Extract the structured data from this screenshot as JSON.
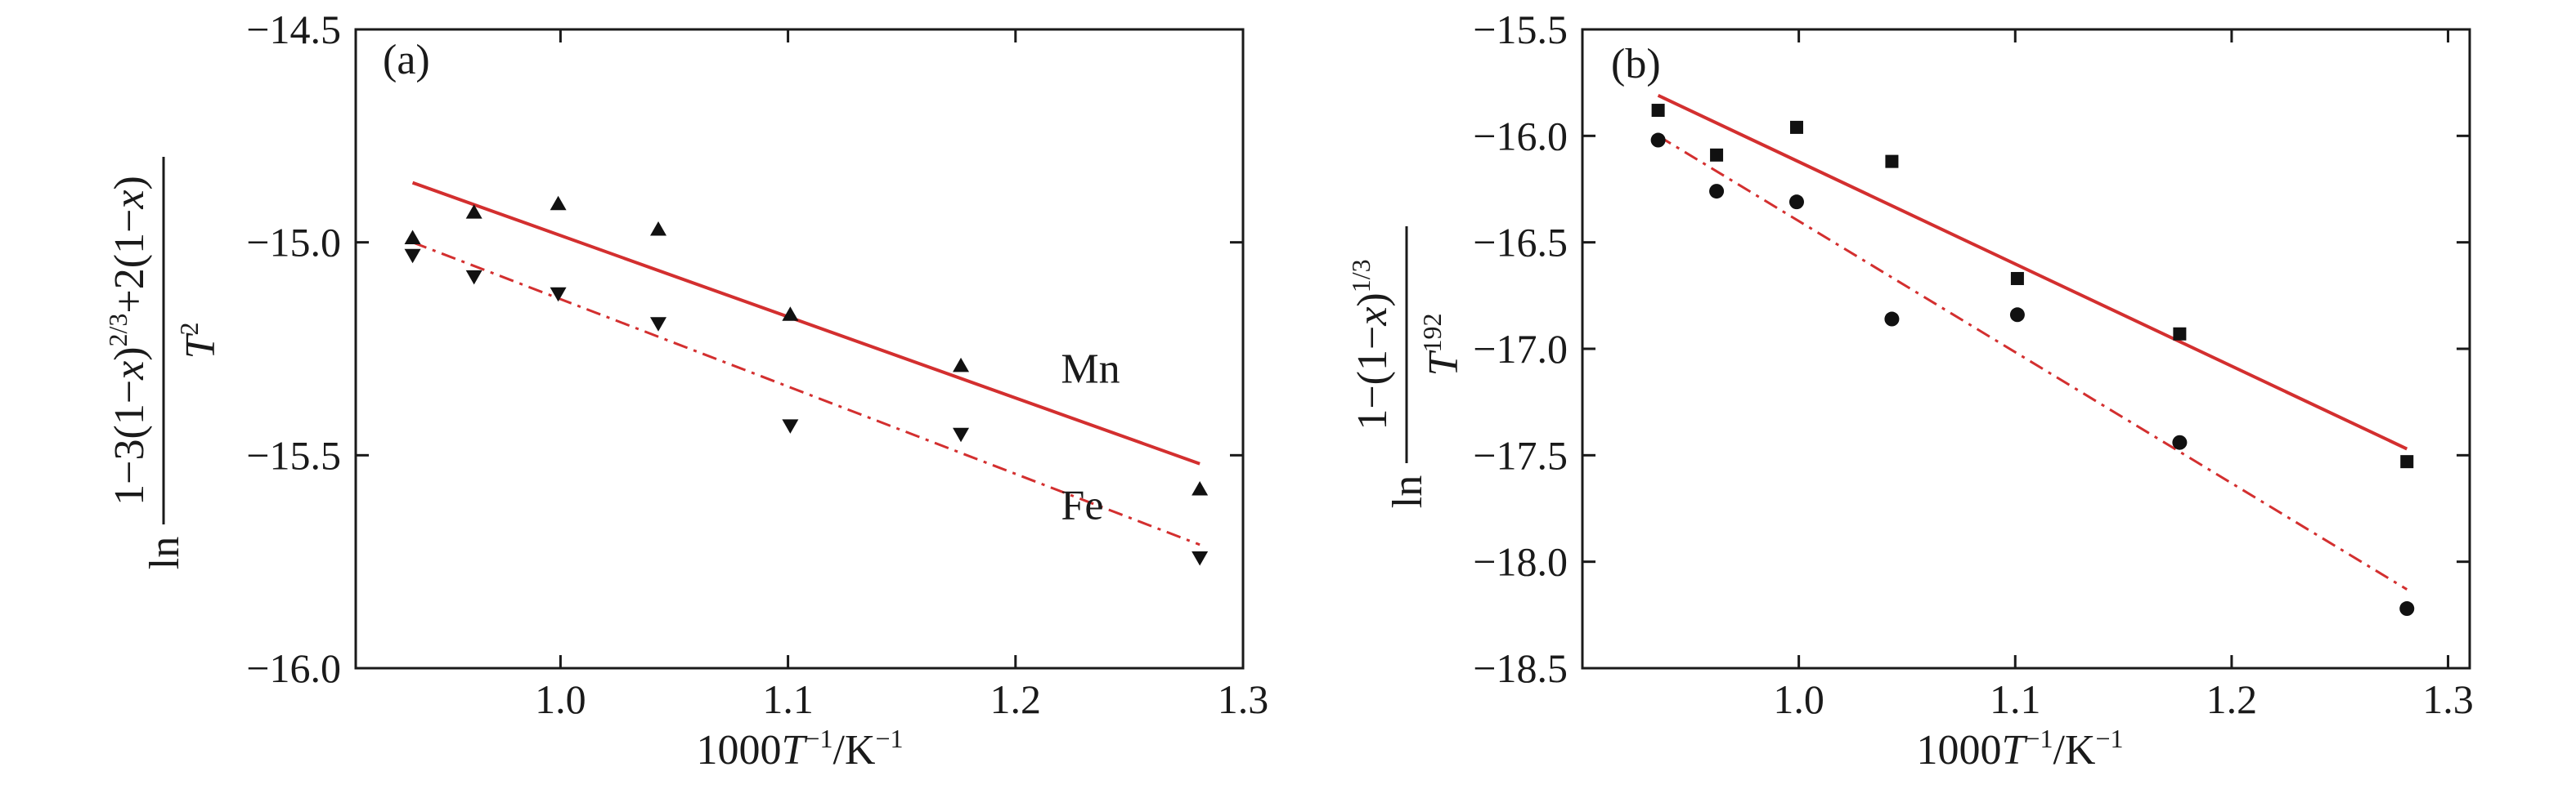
{
  "chart_data": [
    {
      "type": "scatter",
      "panel_label": "(a)",
      "ylabel": {
        "pre": "ln",
        "num": "1−3(1−",
        "num_x1": "x",
        "num_mid": ")",
        "num_sup": "2/3",
        "num_post": "+2(1−",
        "num_x2": "x",
        "num_end": ")",
        "den": "T",
        "den_sup": "2"
      },
      "xlabel": {
        "pre": "1000",
        "t": "T",
        "sup1": "−1",
        "post": "/K",
        "sup2": "−1"
      },
      "xlim": [
        0.91,
        1.3
      ],
      "ylim": [
        -16.0,
        -14.5
      ],
      "xticks": [
        1.0,
        1.1,
        1.2,
        1.3
      ],
      "xtick_labels": [
        "1.0",
        "1.1",
        "1.2",
        "1.3"
      ],
      "yticks": [
        -14.5,
        -15.0,
        -15.5,
        -16.0
      ],
      "ytick_labels": [
        "−14.5",
        "−15.0",
        "−15.5",
        "−16.0"
      ],
      "series": [
        {
          "name": "Mn",
          "marker": "triangle-up",
          "line_style": "solid",
          "x": [
            0.935,
            0.962,
            0.999,
            1.043,
            1.101,
            1.176,
            1.281
          ],
          "y": [
            -14.99,
            -14.93,
            -14.91,
            -14.97,
            -15.17,
            -15.29,
            -15.58
          ],
          "fit": {
            "x": [
              0.935,
              1.281
            ],
            "y": [
              -14.86,
              -15.52
            ]
          }
        },
        {
          "name": "Fe",
          "marker": "triangle-down",
          "line_style": "dashdot",
          "x": [
            0.935,
            0.962,
            0.999,
            1.043,
            1.101,
            1.176,
            1.281
          ],
          "y": [
            -15.03,
            -15.08,
            -15.12,
            -15.19,
            -15.43,
            -15.45,
            -15.74
          ],
          "fit": {
            "x": [
              0.935,
              1.281
            ],
            "y": [
              -15.0,
              -15.71
            ]
          }
        }
      ],
      "series_labels": [
        {
          "text": "Mn",
          "x": 1.22,
          "y": -15.33
        },
        {
          "text": "Fe",
          "x": 1.22,
          "y": -15.65
        }
      ],
      "line_color": "#d32f2f",
      "grid": false
    },
    {
      "type": "scatter",
      "panel_label": "(b)",
      "ylabel": {
        "pre": "ln",
        "num": "1−(1−",
        "num_x": "x",
        "num_end": ")",
        "num_sup": "1/3",
        "den": "T",
        "den_sup": "192"
      },
      "xlabel": {
        "pre": "1000",
        "t": "T",
        "sup1": "−1",
        "post": "/K",
        "sup2": "−1"
      },
      "xlim": [
        0.9,
        1.31
      ],
      "ylim": [
        -18.5,
        -15.5
      ],
      "xticks": [
        1.0,
        1.1,
        1.2,
        1.3
      ],
      "xtick_labels": [
        "1.0",
        "1.1",
        "1.2",
        "1.3"
      ],
      "yticks": [
        -15.5,
        -16.0,
        -16.5,
        -17.0,
        -17.5,
        -18.0,
        -18.5
      ],
      "ytick_labels": [
        "−15.5",
        "−16.0",
        "−16.5",
        "−17.0",
        "−17.5",
        "−18.0",
        "−18.5"
      ],
      "series": [
        {
          "name": "",
          "marker": "square",
          "line_style": "solid",
          "x": [
            0.935,
            0.962,
            0.999,
            1.043,
            1.101,
            1.176,
            1.281
          ],
          "y": [
            -15.88,
            -16.09,
            -15.96,
            -16.12,
            -16.67,
            -16.93,
            -17.53
          ],
          "fit": {
            "x": [
              0.935,
              1.281
            ],
            "y": [
              -15.81,
              -17.47
            ]
          }
        },
        {
          "name": "",
          "marker": "circle",
          "line_style": "dashdot",
          "x": [
            0.935,
            0.962,
            0.999,
            1.043,
            1.101,
            1.176,
            1.281
          ],
          "y": [
            -16.02,
            -16.26,
            -16.31,
            -16.86,
            -16.84,
            -17.44,
            -18.22
          ],
          "fit": {
            "x": [
              0.935,
              1.281
            ],
            "y": [
              -16.0,
              -18.13
            ]
          }
        }
      ],
      "line_color": "#d32f2f",
      "grid": false
    }
  ]
}
